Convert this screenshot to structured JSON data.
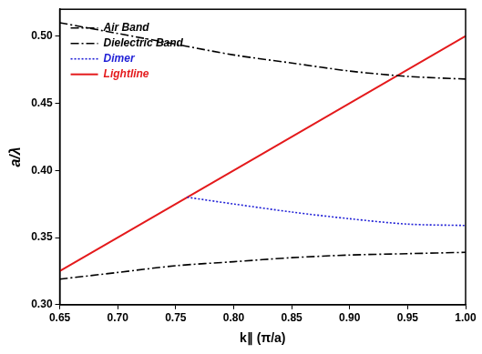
{
  "chart_data": {
    "type": "line",
    "x_label": "k∥ (π/a)",
    "y_label": "a/λ",
    "xlim": [
      0.65,
      1.0
    ],
    "ylim": [
      0.3,
      0.52
    ],
    "xticks": [
      0.65,
      {
        "value": 0.7,
        "label": "0.70"
      },
      0.75,
      {
        "value": 0.8,
        "label": "0.80"
      },
      0.85,
      {
        "value": 0.9,
        "label": "0.90"
      },
      0.95,
      {
        "value": 1.0,
        "label": "1.00"
      }
    ],
    "yticks": [
      {
        "value": 0.3,
        "label": "0.30"
      },
      0.35,
      {
        "value": 0.4,
        "label": "0.40"
      },
      0.45,
      {
        "value": 0.5,
        "label": "0.50"
      }
    ],
    "grid": false,
    "legend": "upper left",
    "series": [
      {
        "name": "Air Band",
        "color": "#000000",
        "line_style": "dashdot",
        "marker": "none",
        "x": [
          0.65,
          0.7,
          0.75,
          0.8,
          0.85,
          0.9,
          0.95,
          1.0
        ],
        "values": [
          0.51,
          0.502,
          0.494,
          0.486,
          0.48,
          0.474,
          0.47,
          0.468
        ]
      },
      {
        "name": "Dielectric Band",
        "color": "#000000",
        "line_style": "dashdot",
        "marker": "none",
        "x": [
          0.65,
          0.7,
          0.75,
          0.8,
          0.85,
          0.9,
          0.95,
          1.0
        ],
        "values": [
          0.319,
          0.324,
          0.329,
          0.332,
          0.335,
          0.337,
          0.338,
          0.339
        ]
      },
      {
        "name": "Dimer",
        "color": "#1f1fd6",
        "line_style": "dotted",
        "marker": "none",
        "x": [
          0.76,
          0.8,
          0.85,
          0.9,
          0.95,
          1.0
        ],
        "values": [
          0.38,
          0.375,
          0.369,
          0.364,
          0.36,
          0.359
        ]
      },
      {
        "name": "Lightline",
        "color": "#e41a1c",
        "line_style": "solid",
        "marker": "none",
        "x": [
          0.65,
          1.0
        ],
        "values": [
          0.325,
          0.5
        ]
      }
    ]
  }
}
